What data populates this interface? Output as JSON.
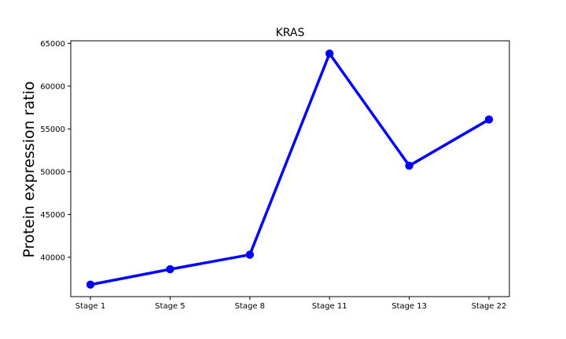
{
  "chart_data": {
    "type": "line",
    "title": "KRAS",
    "xlabel": "",
    "ylabel": "Protein expression ratio",
    "categories": [
      "Stage 1",
      "Stage 5",
      "Stage 8",
      "Stage 11",
      "Stage 13",
      "Stage 22"
    ],
    "series": [
      {
        "values": [
          36800,
          38600,
          40300,
          63800,
          50700,
          56100
        ],
        "color": "#0000ff",
        "marker": "circle"
      }
    ],
    "ylim": [
      35400,
      65300
    ],
    "yticks": [
      40000,
      45000,
      50000,
      55000,
      60000,
      65000
    ],
    "grid": false,
    "legend": "none"
  }
}
